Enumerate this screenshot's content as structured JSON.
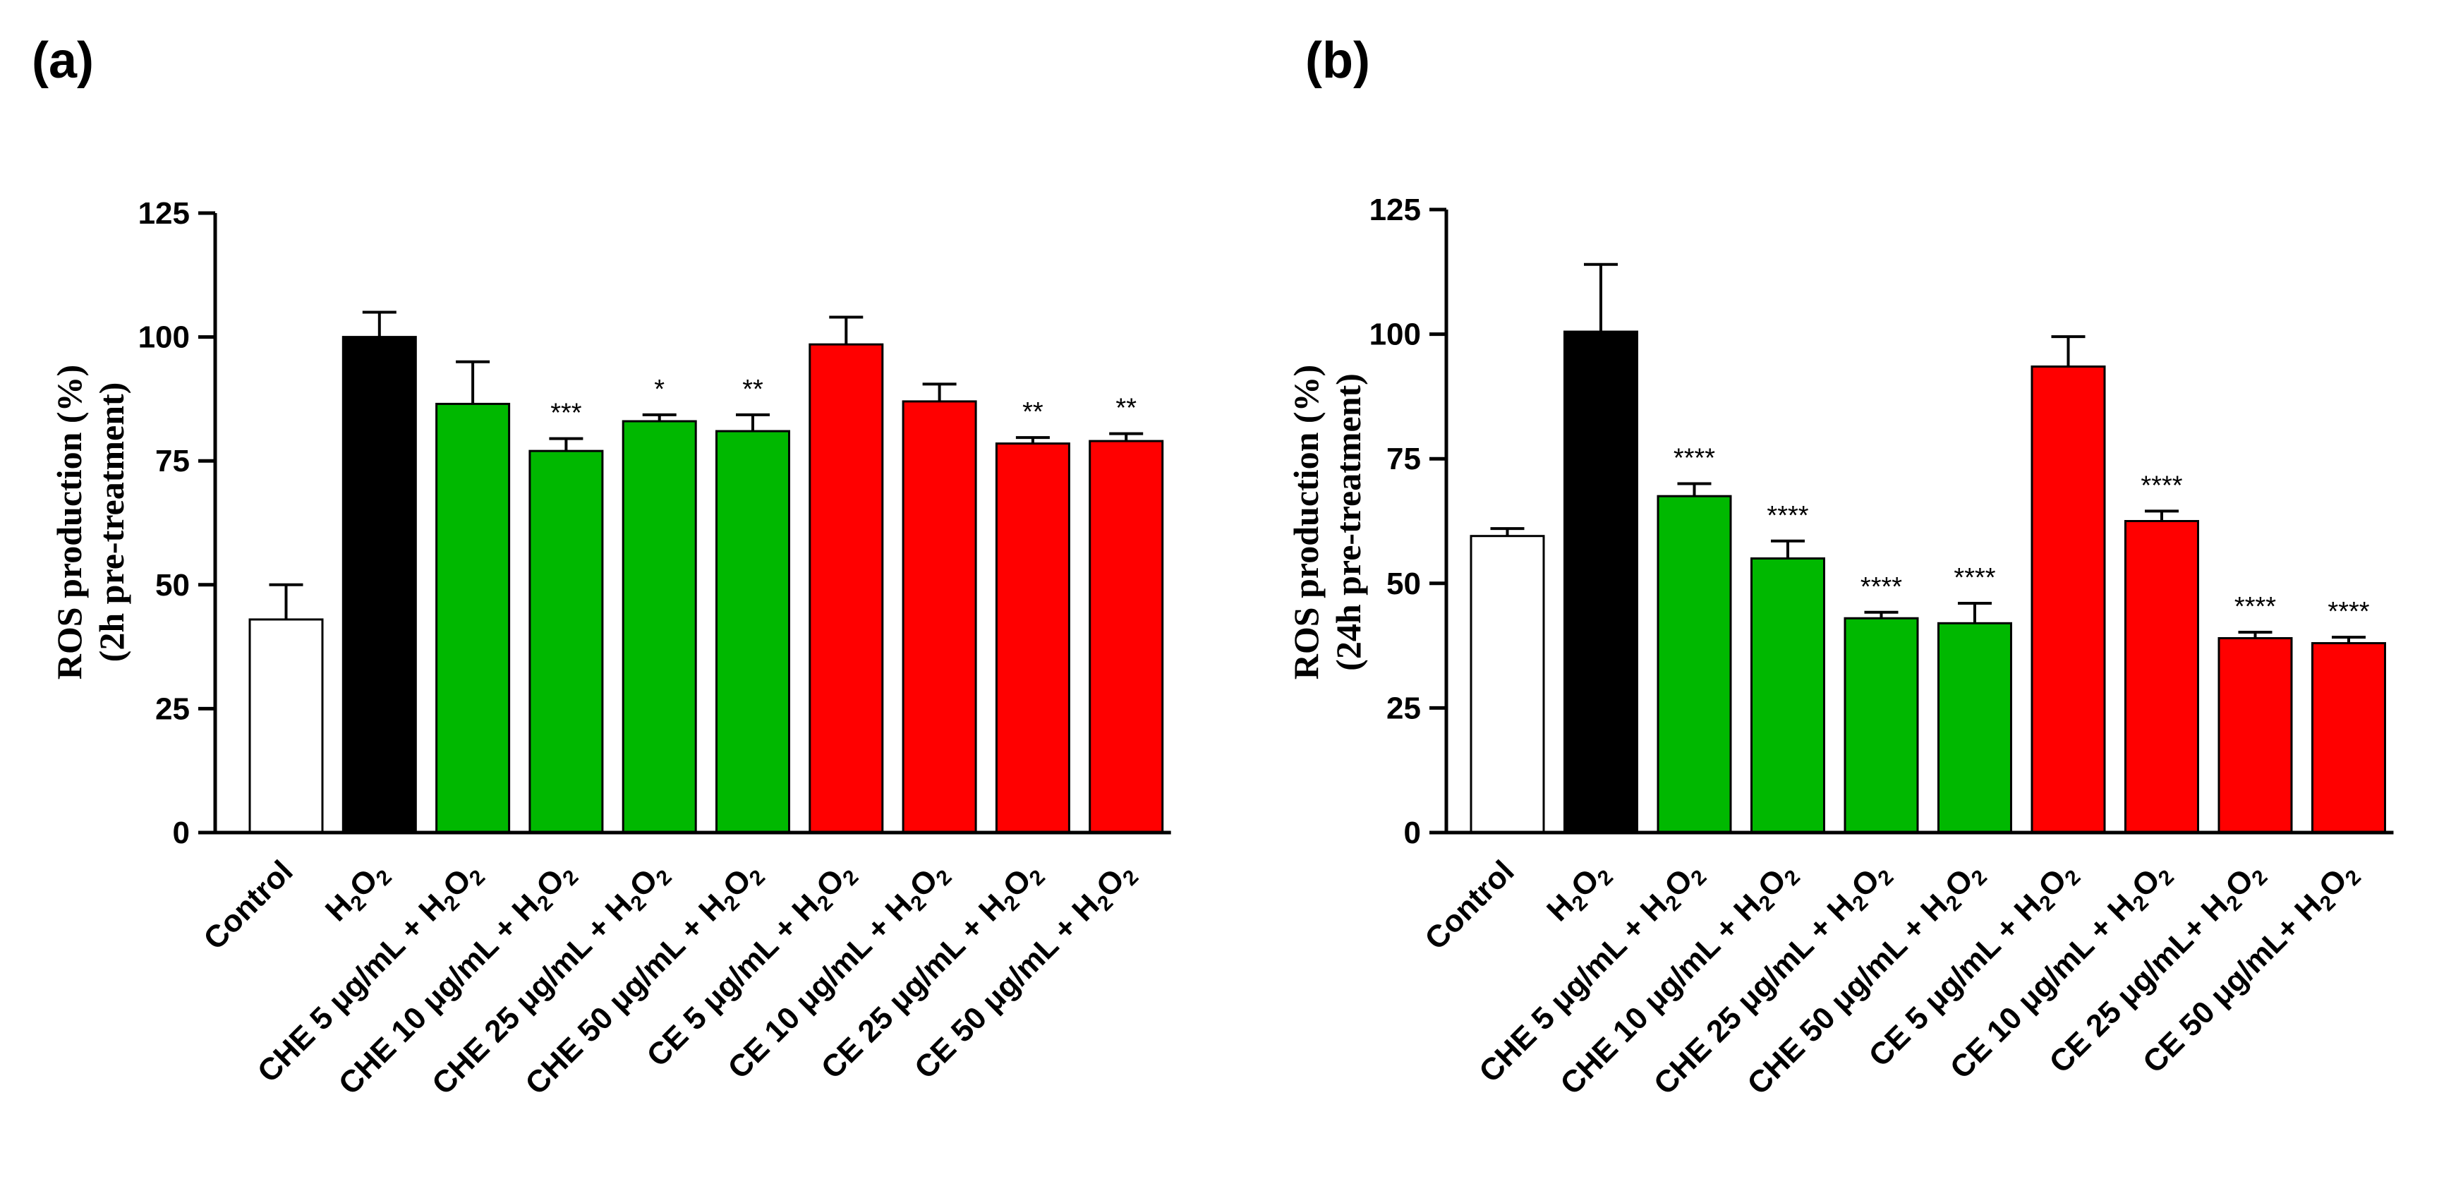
{
  "colors": {
    "white_bar": "#ffffff",
    "black_bar": "#000000",
    "green_bar": "#00b800",
    "red_bar": "#ff0000",
    "axis": "#000000"
  },
  "chart_data": [
    {
      "type": "bar",
      "panel_label": "(a)",
      "ylabel": [
        "ROS production  (%)",
        "(2h pre-treatment)"
      ],
      "ylim": [
        0,
        125
      ],
      "yticks": [
        "0",
        "25",
        "50",
        "75",
        "100",
        "125"
      ],
      "categories": [
        [
          "Control"
        ],
        [
          "H",
          "2",
          "O",
          "2"
        ],
        [
          "CHE 5 μg/mL + H",
          "2",
          "O",
          "2"
        ],
        [
          "CHE 10 μg/mL + H",
          "2",
          "O",
          "2"
        ],
        [
          "CHE 25 μg/mL + H",
          "2",
          "O",
          "2"
        ],
        [
          "CHE 50 μg/mL + H",
          "2",
          "O",
          "2"
        ],
        [
          "CE 5 μg/mL + H",
          "2",
          "O",
          "2"
        ],
        [
          "CE 10 μg/mL + H",
          "2",
          "O",
          "2"
        ],
        [
          "CE 25 μg/mL + H",
          "2",
          "O",
          "2"
        ],
        [
          "CE 50 μg/mL + H",
          "2",
          "O",
          "2"
        ]
      ],
      "values": [
        43,
        100,
        86.5,
        77,
        83,
        81,
        98.5,
        87,
        78.5,
        79
      ],
      "errors": [
        7,
        5,
        8.5,
        2.5,
        1.3,
        3.3,
        5.5,
        3.5,
        1.2,
        1.5
      ],
      "bar_colors": [
        "white",
        "black",
        "green",
        "green",
        "green",
        "green",
        "red",
        "red",
        "red",
        "red"
      ],
      "significance": [
        "",
        "",
        "",
        "***",
        "*",
        "**",
        "",
        "",
        "**",
        "**"
      ]
    },
    {
      "type": "bar",
      "panel_label": "(b)",
      "ylabel": [
        "ROS production  (%)",
        "(24h pre-treatment)"
      ],
      "ylim": [
        0,
        125
      ],
      "yticks": [
        "0",
        "25",
        "50",
        "75",
        "100",
        "125"
      ],
      "categories": [
        [
          "Control"
        ],
        [
          "H",
          "2",
          "O",
          "2"
        ],
        [
          "CHE 5 μg/mL + H",
          "2",
          "O",
          "2"
        ],
        [
          "CHE 10 μg/mL + H",
          "2",
          "O",
          "2"
        ],
        [
          "CHE 25 μg/mL + H",
          "2",
          "O",
          "2"
        ],
        [
          "CHE 50 μg/mL + H",
          "2",
          "O",
          "2"
        ],
        [
          "CE 5 μg/mL + H",
          "2",
          "O",
          "2"
        ],
        [
          "CE 10 μg/mL + H",
          "2",
          "O",
          "2"
        ],
        [
          "CE 25 μg/mL+ H",
          "2",
          "O",
          "2"
        ],
        [
          "CE 50 μg/mL+ H",
          "2",
          "O",
          "2"
        ]
      ],
      "values": [
        59.5,
        100.5,
        67.5,
        55,
        43,
        42,
        93.5,
        62.5,
        39,
        38
      ],
      "errors": [
        1.5,
        13.5,
        2.5,
        3.5,
        1.2,
        4,
        6,
        2,
        1.2,
        1.2
      ],
      "bar_colors": [
        "white",
        "black",
        "green",
        "green",
        "green",
        "green",
        "red",
        "red",
        "red",
        "red"
      ],
      "significance": [
        "",
        "",
        "****",
        "****",
        "****",
        "****",
        "",
        "****",
        "****",
        "****"
      ]
    }
  ]
}
